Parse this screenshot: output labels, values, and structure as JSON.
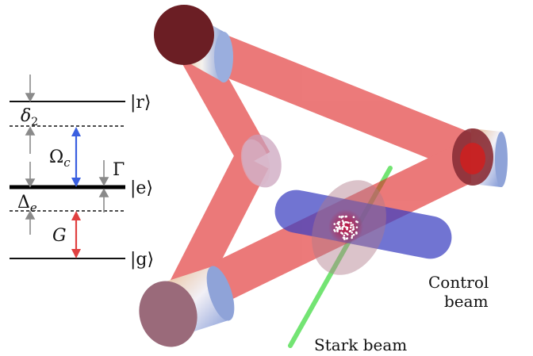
{
  "levels": {
    "r": "|r⟩",
    "e": "|e⟩",
    "g": "|g⟩"
  },
  "symbols": {
    "delta2_base": "δ",
    "delta2_sub": "2",
    "omega_base": "Ω",
    "omega_sub": "c",
    "gamma": "Γ",
    "delta_e_base": "Δ",
    "delta_e_sub": "e",
    "g_coupling": "G"
  },
  "beams": {
    "control_line1": "Control",
    "control_line2": "beam",
    "stark": "Stark beam"
  },
  "colors": {
    "red_beam": "#e02828",
    "blue_beam": "#3b3fc2",
    "green_beam": "#5be05b",
    "omega_arrow": "#3a5fe0",
    "g_arrow": "#e04040",
    "detuning_arrow": "#888888",
    "atom_cloud": "#a0143c"
  }
}
